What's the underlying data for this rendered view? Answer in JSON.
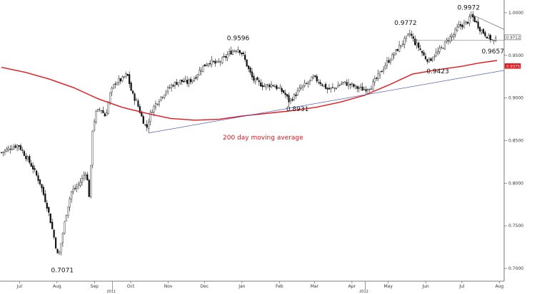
{
  "chart_data": {
    "type": "candlestick",
    "y_axis": {
      "position": "right",
      "range": [
        0.685,
        1.015
      ],
      "ticks": [
        0.7,
        0.75,
        0.8,
        0.85,
        0.9,
        0.95,
        1.0
      ],
      "tick_labels": [
        "0.7000",
        "0.7500",
        "0.8000",
        "0.8500",
        "0.9000",
        "0.9500",
        "1.0000"
      ]
    },
    "x_axis": {
      "range_days": [
        0,
        410
      ],
      "months": [
        {
          "label": "Jul",
          "day": 15
        },
        {
          "label": "Aug",
          "day": 46
        },
        {
          "label": "Sep",
          "day": 77
        },
        {
          "label": "Oct",
          "day": 107
        },
        {
          "label": "Nov",
          "day": 138
        },
        {
          "label": "Dec",
          "day": 168
        },
        {
          "label": "Jan",
          "day": 199
        },
        {
          "label": "Feb",
          "day": 230
        },
        {
          "label": "Mar",
          "day": 259
        },
        {
          "label": "Apr",
          "day": 290
        },
        {
          "label": "May",
          "day": 320
        },
        {
          "label": "Jun",
          "day": 351
        },
        {
          "label": "Jul",
          "day": 381
        },
        {
          "label": "Aug",
          "day": 412
        }
      ],
      "years": [
        {
          "label": "2011",
          "day": 92
        },
        {
          "label": "2012",
          "day": 301
        }
      ]
    },
    "price_path": [
      [
        0,
        0.836
      ],
      [
        8,
        0.842
      ],
      [
        14,
        0.845
      ],
      [
        20,
        0.832
      ],
      [
        26,
        0.818
      ],
      [
        32,
        0.8
      ],
      [
        38,
        0.772
      ],
      [
        43,
        0.74
      ],
      [
        47,
        0.712
      ],
      [
        50,
        0.735
      ],
      [
        54,
        0.768
      ],
      [
        58,
        0.79
      ],
      [
        62,
        0.795
      ],
      [
        66,
        0.803
      ],
      [
        70,
        0.815
      ],
      [
        73,
        0.78
      ],
      [
        75,
        0.86
      ],
      [
        78,
        0.882
      ],
      [
        82,
        0.888
      ],
      [
        86,
        0.878
      ],
      [
        90,
        0.905
      ],
      [
        94,
        0.918
      ],
      [
        100,
        0.922
      ],
      [
        104,
        0.928
      ],
      [
        108,
        0.905
      ],
      [
        112,
        0.895
      ],
      [
        116,
        0.878
      ],
      [
        120,
        0.864
      ],
      [
        124,
        0.885
      ],
      [
        130,
        0.898
      ],
      [
        136,
        0.908
      ],
      [
        142,
        0.916
      ],
      [
        148,
        0.92
      ],
      [
        154,
        0.918
      ],
      [
        160,
        0.924
      ],
      [
        166,
        0.936
      ],
      [
        172,
        0.943
      ],
      [
        178,
        0.94
      ],
      [
        184,
        0.946
      ],
      [
        188,
        0.952
      ],
      [
        192,
        0.956
      ],
      [
        196,
        0.958
      ],
      [
        200,
        0.95
      ],
      [
        204,
        0.935
      ],
      [
        208,
        0.922
      ],
      [
        212,
        0.918
      ],
      [
        218,
        0.914
      ],
      [
        224,
        0.916
      ],
      [
        230,
        0.91
      ],
      [
        234,
        0.906
      ],
      [
        238,
        0.896
      ],
      [
        242,
        0.902
      ],
      [
        248,
        0.912
      ],
      [
        254,
        0.918
      ],
      [
        258,
        0.924
      ],
      [
        264,
        0.918
      ],
      [
        270,
        0.91
      ],
      [
        276,
        0.912
      ],
      [
        282,
        0.918
      ],
      [
        288,
        0.916
      ],
      [
        294,
        0.912
      ],
      [
        300,
        0.91
      ],
      [
        306,
        0.914
      ],
      [
        312,
        0.926
      ],
      [
        318,
        0.94
      ],
      [
        324,
        0.95
      ],
      [
        330,
        0.962
      ],
      [
        334,
        0.968
      ],
      [
        338,
        0.976
      ],
      [
        342,
        0.965
      ],
      [
        346,
        0.958
      ],
      [
        350,
        0.948
      ],
      [
        354,
        0.944
      ],
      [
        358,
        0.95
      ],
      [
        362,
        0.955
      ],
      [
        366,
        0.962
      ],
      [
        370,
        0.97
      ],
      [
        374,
        0.974
      ],
      [
        378,
        0.984
      ],
      [
        382,
        0.986
      ],
      [
        386,
        0.99
      ],
      [
        389,
        0.997
      ],
      [
        392,
        0.99
      ],
      [
        396,
        0.981
      ],
      [
        400,
        0.975
      ],
      [
        404,
        0.97
      ],
      [
        408,
        0.966
      ],
      [
        410,
        0.97
      ]
    ],
    "series": [
      {
        "name": "200 day moving average",
        "color": "#e8141c",
        "points": [
          [
            0,
            0.936
          ],
          [
            20,
            0.93
          ],
          [
            40,
            0.922
          ],
          [
            60,
            0.912
          ],
          [
            80,
            0.899
          ],
          [
            100,
            0.889
          ],
          [
            120,
            0.882
          ],
          [
            140,
            0.876
          ],
          [
            160,
            0.874
          ],
          [
            180,
            0.875
          ],
          [
            200,
            0.879
          ],
          [
            220,
            0.882
          ],
          [
            240,
            0.885
          ],
          [
            260,
            0.889
          ],
          [
            280,
            0.895
          ],
          [
            300,
            0.903
          ],
          [
            320,
            0.915
          ],
          [
            340,
            0.928
          ],
          [
            360,
            0.933
          ],
          [
            380,
            0.937
          ],
          [
            395,
            0.941
          ],
          [
            410,
            0.944
          ]
        ]
      }
    ],
    "trendlines": [
      {
        "color": "#3344bb",
        "from": [
          122,
          0.859
        ],
        "to": [
          438,
          0.938
        ]
      },
      {
        "color": "#555555",
        "from": [
          389,
          0.998
        ],
        "to": [
          432,
          0.97
        ]
      },
      {
        "color": "#666666",
        "from": [
          340,
          0.968
        ],
        "to": [
          432,
          0.968
        ]
      }
    ],
    "annotations": [
      {
        "text": "0.7071",
        "day": 47,
        "value": 0.7071,
        "dx": -10,
        "dy": 14
      },
      {
        "text": "0.9596",
        "day": 196,
        "value": 0.9596,
        "dx": -16,
        "dy": -10
      },
      {
        "text": "0.8931",
        "day": 238,
        "value": 0.8931,
        "dx": -4,
        "dy": 10
      },
      {
        "text": "0.9772",
        "day": 338,
        "value": 0.9772,
        "dx": -22,
        "dy": -10
      },
      {
        "text": "0.9423",
        "day": 354,
        "value": 0.9423,
        "dx": -4,
        "dy": 16
      },
      {
        "text": "0.9972",
        "day": 389,
        "value": 0.9972,
        "dx": -20,
        "dy": -8
      },
      {
        "text": "0.9657",
        "day": 402,
        "value": 0.9657,
        "dx": -8,
        "dy": 16
      }
    ],
    "moving_average_label": {
      "text": "200 day moving average",
      "color": "#e8141c"
    },
    "price_tags": [
      {
        "text": "0.9712",
        "value": 0.9712,
        "bg": "#ffffff",
        "fg": "#333333",
        "border": "#333333"
      },
      {
        "text": "0.9375",
        "value": 0.9375,
        "bg": "#e8141c",
        "fg": "#ffffff",
        "border": "#e8141c"
      }
    ],
    "colors": {
      "candle": "#111111",
      "up_body": "#ffffff",
      "down_body": "#111111"
    }
  }
}
